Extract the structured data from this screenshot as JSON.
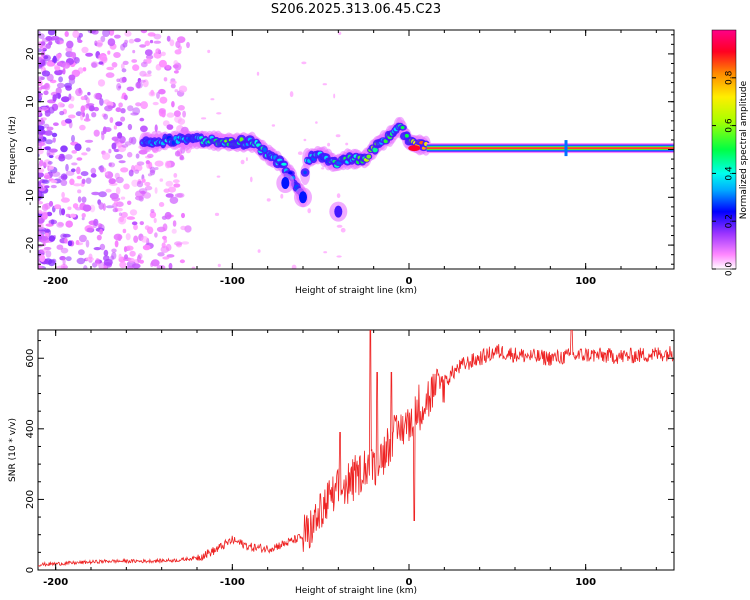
{
  "title": "S206.2025.313.06.45.C23",
  "top_xlabel": "Height of straight line (km)",
  "top_ylabel": "Frequency (Hz)",
  "colorbar_label": "Normalized spectral amplitude",
  "bottom_xlabel": "Height of straight line (km)",
  "bottom_ylabel": "SNR (10 * v/v)",
  "colors": {
    "snr_line": "#ee2222",
    "frame": "#000000"
  },
  "chart_data": [
    {
      "type": "heatmap",
      "title": "S206.2025.313.06.45.C23",
      "xlabel": "Height of straight line (km)",
      "ylabel": "Frequency (Hz)",
      "xlim": [
        -210,
        150
      ],
      "ylim": [
        -25,
        25
      ],
      "xticks": [
        -200,
        -100,
        0,
        100
      ],
      "yticks": [
        -20,
        -10,
        0,
        10,
        20
      ],
      "colorbar": {
        "label": "Normalized spectral amplitude",
        "range": [
          0,
          1
        ],
        "ticks": [
          "0.0",
          "0.2",
          "0.4",
          "0.6",
          "0.8"
        ]
      },
      "ridge": [
        {
          "x": -150,
          "f": 1.5,
          "a": 0.35
        },
        {
          "x": -130,
          "f": 2.0,
          "a": 0.35
        },
        {
          "x": -115,
          "f": 2.0,
          "a": 0.4
        },
        {
          "x": -100,
          "f": 1.5,
          "a": 0.5
        },
        {
          "x": -88,
          "f": 1.5,
          "a": 0.45
        },
        {
          "x": -80,
          "f": -1.0,
          "a": 0.35
        },
        {
          "x": -72,
          "f": -3.0,
          "a": 0.35
        },
        {
          "x": -66,
          "f": -6.0,
          "a": 0.3
        },
        {
          "x": -60,
          "f": -10.0,
          "a": 0.25
        },
        {
          "x": -58,
          "f": -2.0,
          "a": 0.35
        },
        {
          "x": -50,
          "f": -1.0,
          "a": 0.35
        },
        {
          "x": -42,
          "f": -3.0,
          "a": 0.4
        },
        {
          "x": -35,
          "f": -2.0,
          "a": 0.45
        },
        {
          "x": -25,
          "f": -2.0,
          "a": 0.55
        },
        {
          "x": -18,
          "f": 1.0,
          "a": 0.5
        },
        {
          "x": -10,
          "f": 3.0,
          "a": 0.45
        },
        {
          "x": -5,
          "f": 5.0,
          "a": 0.4
        },
        {
          "x": 0,
          "f": 1.5,
          "a": 0.5
        },
        {
          "x": 5,
          "f": 1.0,
          "a": 0.7
        },
        {
          "x": 20,
          "f": 0.3,
          "a": 0.9
        },
        {
          "x": 150,
          "f": 0.3,
          "a": 0.95
        }
      ],
      "blobs": [
        {
          "x": -40,
          "f": -13,
          "a": 0.2
        },
        {
          "x": -60,
          "f": -10,
          "a": 0.25
        },
        {
          "x": -70,
          "f": -7,
          "a": 0.25
        }
      ],
      "noise_region_x": [
        -210,
        -125
      ]
    },
    {
      "type": "line",
      "xlabel": "Height of straight line (km)",
      "ylabel": "SNR (10 * v/v)",
      "xlim": [
        -210,
        150
      ],
      "ylim": [
        0,
        680
      ],
      "xticks": [
        -200,
        -100,
        0,
        100
      ],
      "yticks": [
        0,
        200,
        400,
        600
      ],
      "series": [
        {
          "name": "SNR",
          "x": [
            -210,
            -190,
            -170,
            -150,
            -130,
            -120,
            -110,
            -100,
            -90,
            -80,
            -70,
            -60,
            -55,
            -50,
            -45,
            -40,
            -35,
            -30,
            -25,
            -20,
            -15,
            -10,
            -5,
            0,
            5,
            10,
            15,
            20,
            25,
            30,
            40,
            50,
            60,
            80,
            100,
            120,
            150
          ],
          "y": [
            15,
            20,
            25,
            25,
            28,
            35,
            55,
            85,
            65,
            60,
            75,
            95,
            120,
            160,
            200,
            220,
            240,
            260,
            290,
            300,
            330,
            360,
            400,
            420,
            460,
            480,
            510,
            530,
            560,
            580,
            600,
            620,
            610,
            600,
            610,
            605,
            615
          ]
        }
      ],
      "spikes": [
        {
          "x": -39,
          "y": 390
        },
        {
          "x": -22,
          "y": 680
        },
        {
          "x": -18,
          "y": 560
        },
        {
          "x": -10,
          "y": 560
        },
        {
          "x": 3,
          "y": 140
        },
        {
          "x": 92,
          "y": 680
        }
      ]
    }
  ]
}
